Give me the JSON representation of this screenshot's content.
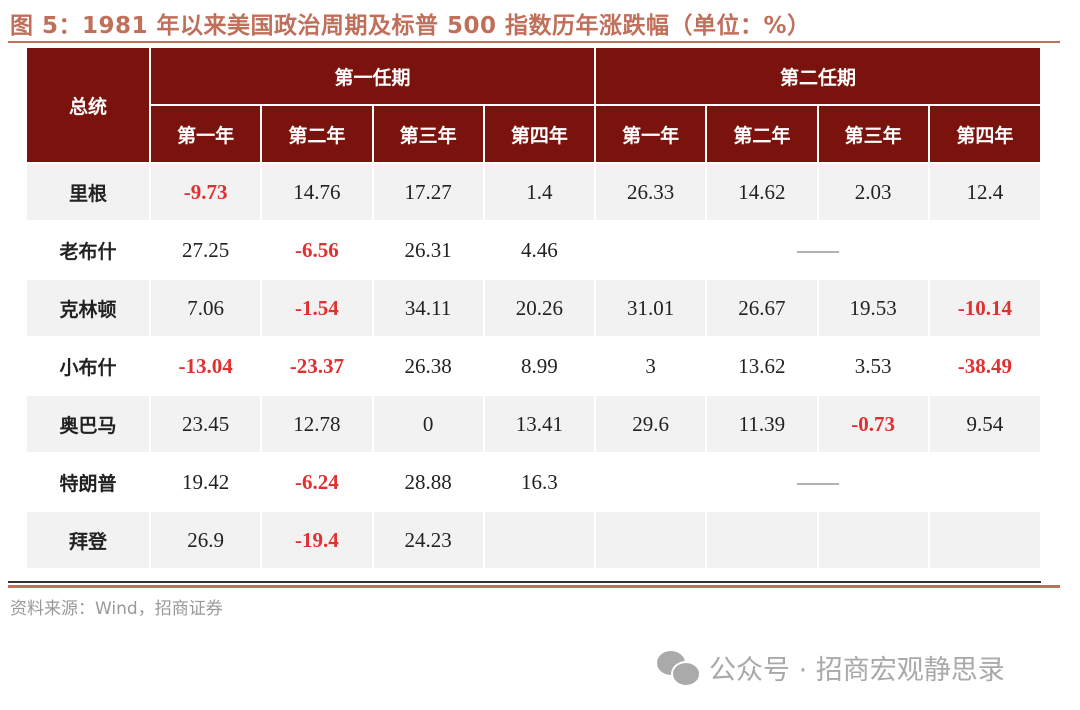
{
  "title": "图 5：1981 年以来美国政治周期及标普 500 指数历年涨跌幅（单位：%）",
  "table": {
    "corner": "总统",
    "terms": [
      "第一任期",
      "第二任期"
    ],
    "years": [
      "第一年",
      "第二年",
      "第三年",
      "第四年",
      "第一年",
      "第二年",
      "第三年",
      "第四年"
    ],
    "rows": [
      {
        "name": "里根",
        "values": [
          "-9.73",
          "14.76",
          "17.27",
          "1.4",
          "26.33",
          "14.62",
          "2.03",
          "12.4"
        ]
      },
      {
        "name": "老布什",
        "values": [
          "27.25",
          "-6.56",
          "26.31",
          "4.46"
        ],
        "second_term": "——"
      },
      {
        "name": "克林顿",
        "values": [
          "7.06",
          "-1.54",
          "34.11",
          "20.26",
          "31.01",
          "26.67",
          "19.53",
          "-10.14"
        ]
      },
      {
        "name": "小布什",
        "values": [
          "-13.04",
          "-23.37",
          "26.38",
          "8.99",
          "3",
          "13.62",
          "3.53",
          "-38.49"
        ]
      },
      {
        "name": "奥巴马",
        "values": [
          "23.45",
          "12.78",
          "0",
          "13.41",
          "29.6",
          "11.39",
          "-0.73",
          "9.54"
        ]
      },
      {
        "name": "特朗普",
        "values": [
          "19.42",
          "-6.24",
          "28.88",
          "16.3"
        ],
        "second_term": "——"
      },
      {
        "name": "拜登",
        "values": [
          "26.9",
          "-19.4",
          "24.23",
          "",
          "",
          "",
          "",
          ""
        ]
      }
    ]
  },
  "colors": {
    "header_bg": "#7a130d",
    "negative": "#e03030",
    "accent": "#c0705a"
  },
  "source": "资料来源：Wind，招商证券",
  "watermark": "公众号 · 招商宏观静思录"
}
